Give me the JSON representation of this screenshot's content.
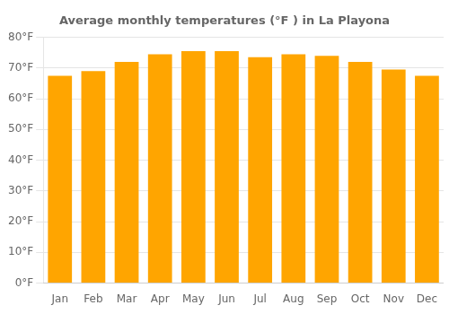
{
  "chart_data": {
    "type": "bar",
    "title": "Average monthly temperatures (°F ) in La Playona",
    "categories": [
      "Jan",
      "Feb",
      "Mar",
      "Apr",
      "May",
      "Jun",
      "Jul",
      "Aug",
      "Sep",
      "Oct",
      "Nov",
      "Dec"
    ],
    "values": [
      67.5,
      69.0,
      72.0,
      74.5,
      75.5,
      75.5,
      73.5,
      74.5,
      74.0,
      72.0,
      69.5,
      67.5
    ],
    "color": "#FFA500",
    "ylim": [
      0,
      80
    ],
    "yticks": [
      {
        "value": 0,
        "label": "0°F"
      },
      {
        "value": 10,
        "label": "10°F"
      },
      {
        "value": 20,
        "label": "20°F"
      },
      {
        "value": 30,
        "label": "30°F"
      },
      {
        "value": 40,
        "label": "40°F"
      },
      {
        "value": 50,
        "label": "50°F"
      },
      {
        "value": 60,
        "label": "60°F"
      },
      {
        "value": 70,
        "label": "70°F"
      },
      {
        "value": 80,
        "label": "80°F"
      }
    ],
    "grid": true
  }
}
